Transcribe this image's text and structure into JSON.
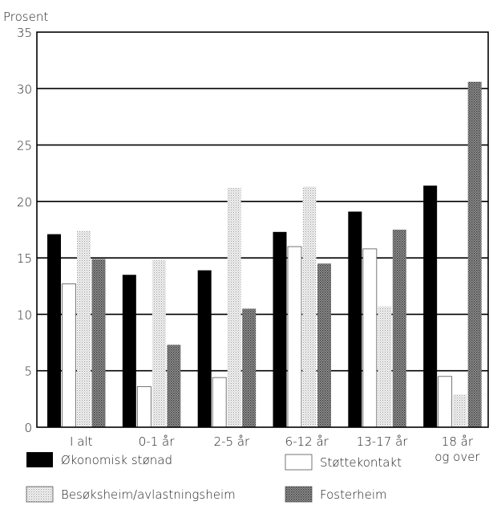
{
  "chart_data": {
    "type": "bar",
    "ylabel": "Prosent",
    "xlabel": "",
    "ylim": [
      0,
      35
    ],
    "yticks": [
      0,
      5,
      10,
      15,
      20,
      25,
      30,
      35
    ],
    "grid": true,
    "legend_position": "bottom",
    "categories": [
      [
        "I alt"
      ],
      [
        "0-1 år"
      ],
      [
        "2-5 år"
      ],
      [
        "6-12 år"
      ],
      [
        "13-17 år"
      ],
      [
        "18 år",
        "og over"
      ]
    ],
    "series": [
      {
        "name": "Økonomisk stønad",
        "pattern": "solid-black",
        "values": [
          17.1,
          13.5,
          13.9,
          17.3,
          19.1,
          21.4
        ]
      },
      {
        "name": "Støttekontakt",
        "pattern": "white",
        "values": [
          12.7,
          3.6,
          4.4,
          16.0,
          15.8,
          4.5
        ]
      },
      {
        "name": "Besøksheim/avlastningsheim",
        "pattern": "light-dots",
        "values": [
          17.4,
          14.8,
          21.2,
          21.3,
          10.7,
          2.9
        ]
      },
      {
        "name": "Fosterheim",
        "pattern": "dark-dots",
        "values": [
          14.9,
          7.3,
          10.5,
          14.5,
          17.5,
          30.6
        ]
      }
    ]
  }
}
